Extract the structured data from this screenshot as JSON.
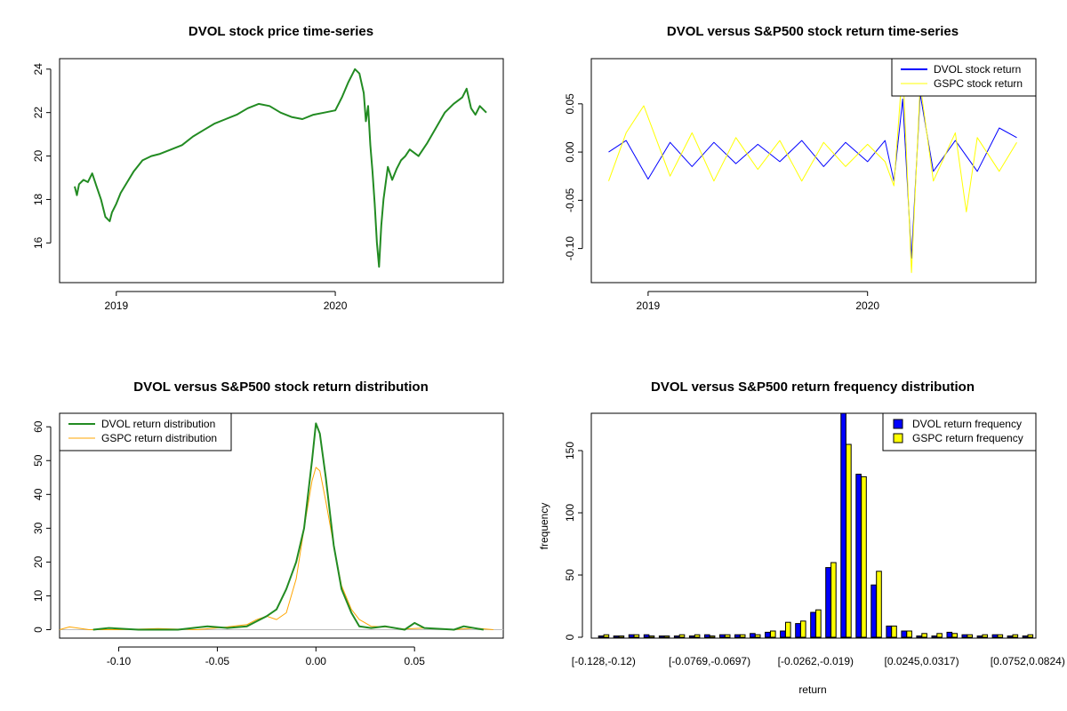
{
  "chart_data": [
    {
      "type": "line",
      "title": "DVOL stock price time-series",
      "xlabel": "",
      "ylabel": "",
      "x_range": [
        2018.81,
        2020.69
      ],
      "ylim": [
        14.5,
        24.4
      ],
      "x_ticks": [
        {
          "value": 2019.0,
          "label": "2019"
        },
        {
          "value": 2020.0,
          "label": "2020"
        }
      ],
      "y_ticks": [
        16,
        18,
        20,
        22,
        24
      ],
      "color": "#228B22",
      "series": [
        {
          "name": "DVOL price",
          "x": [
            2018.81,
            2018.82,
            2018.83,
            2018.85,
            2018.87,
            2018.89,
            2018.91,
            2018.93,
            2018.95,
            2018.97,
            2018.98,
            2019.0,
            2019.02,
            2019.05,
            2019.08,
            2019.12,
            2019.16,
            2019.2,
            2019.25,
            2019.3,
            2019.35,
            2019.4,
            2019.45,
            2019.5,
            2019.55,
            2019.6,
            2019.65,
            2019.7,
            2019.75,
            2019.8,
            2019.85,
            2019.9,
            2019.95,
            2020.0,
            2020.03,
            2020.06,
            2020.09,
            2020.11,
            2020.13,
            2020.14,
            2020.15,
            2020.16,
            2020.17,
            2020.18,
            2020.19,
            2020.2,
            2020.21,
            2020.22,
            2020.24,
            2020.26,
            2020.28,
            2020.3,
            2020.32,
            2020.34,
            2020.38,
            2020.42,
            2020.46,
            2020.5,
            2020.54,
            2020.58,
            2020.6,
            2020.62,
            2020.64,
            2020.66,
            2020.69
          ],
          "values": [
            18.6,
            18.2,
            18.7,
            18.9,
            18.8,
            19.2,
            18.6,
            18.0,
            17.2,
            17.0,
            17.4,
            17.8,
            18.3,
            18.8,
            19.3,
            19.8,
            20.0,
            20.1,
            20.3,
            20.5,
            20.9,
            21.2,
            21.5,
            21.7,
            21.9,
            22.2,
            22.4,
            22.3,
            22.0,
            21.8,
            21.7,
            21.9,
            22.0,
            22.1,
            22.7,
            23.4,
            24.0,
            23.8,
            22.9,
            21.6,
            22.3,
            20.5,
            19.3,
            17.8,
            16.0,
            14.9,
            16.8,
            18.0,
            19.5,
            18.9,
            19.4,
            19.8,
            20.0,
            20.3,
            20.0,
            20.6,
            21.3,
            22.0,
            22.4,
            22.7,
            23.1,
            22.2,
            21.9,
            22.3,
            22.0
          ]
        }
      ]
    },
    {
      "type": "line",
      "title": "DVOL versus S&P500 stock return time-series",
      "xlabel": "",
      "ylabel": "",
      "x_range": [
        2018.81,
        2020.69
      ],
      "ylim": [
        -0.128,
        0.095
      ],
      "x_ticks": [
        {
          "value": 2019.0,
          "label": "2019"
        },
        {
          "value": 2020.0,
          "label": "2020"
        }
      ],
      "y_ticks": [
        {
          "value": -0.1,
          "label": "-0.10"
        },
        {
          "value": -0.05,
          "label": "-0.05"
        },
        {
          "value": 0.0,
          "label": "0.00"
        },
        {
          "value": 0.05,
          "label": "0.05"
        }
      ],
      "legend": {
        "position": "top-right",
        "entries": [
          {
            "label": "DVOL stock return",
            "color": "#0000FF"
          },
          {
            "label": "GSPC stock return",
            "color": "#FFFF00"
          }
        ]
      },
      "series": [
        {
          "name": "DVOL stock return",
          "color": "#0000FF",
          "x": [
            2018.82,
            2018.9,
            2019.0,
            2019.1,
            2019.2,
            2019.3,
            2019.4,
            2019.5,
            2019.6,
            2019.7,
            2019.8,
            2019.9,
            2020.0,
            2020.08,
            2020.12,
            2020.16,
            2020.2,
            2020.24,
            2020.3,
            2020.4,
            2020.5,
            2020.6,
            2020.68
          ],
          "values": [
            0.0,
            0.012,
            -0.028,
            0.01,
            -0.015,
            0.01,
            -0.012,
            0.008,
            -0.01,
            0.012,
            -0.015,
            0.01,
            -0.01,
            0.012,
            -0.03,
            0.055,
            -0.11,
            0.06,
            -0.02,
            0.012,
            -0.02,
            0.025,
            0.015
          ]
        },
        {
          "name": "GSPC stock return",
          "color": "#FFFF00",
          "x": [
            2018.82,
            2018.9,
            2018.98,
            2019.1,
            2019.2,
            2019.3,
            2019.4,
            2019.5,
            2019.6,
            2019.7,
            2019.8,
            2019.9,
            2020.0,
            2020.08,
            2020.12,
            2020.16,
            2020.2,
            2020.24,
            2020.3,
            2020.4,
            2020.45,
            2020.5,
            2020.6,
            2020.68
          ],
          "values": [
            -0.03,
            0.02,
            0.048,
            -0.025,
            0.02,
            -0.03,
            0.015,
            -0.018,
            0.012,
            -0.03,
            0.01,
            -0.015,
            0.008,
            -0.01,
            -0.035,
            0.09,
            -0.125,
            0.07,
            -0.03,
            0.02,
            -0.062,
            0.015,
            -0.02,
            0.01
          ]
        }
      ]
    },
    {
      "type": "line",
      "title": "DVOL versus S&P500 stock return distribution",
      "xlabel": "",
      "ylabel": "",
      "xlim": [
        -0.13,
        0.095
      ],
      "ylim": [
        -2.5,
        64
      ],
      "x_ticks": [
        {
          "value": -0.1,
          "label": "-0.10"
        },
        {
          "value": -0.05,
          "label": "-0.05"
        },
        {
          "value": 0.0,
          "label": "0.00"
        },
        {
          "value": 0.05,
          "label": "0.05"
        }
      ],
      "y_ticks": [
        0,
        10,
        20,
        30,
        40,
        50,
        60
      ],
      "legend": {
        "position": "top-left",
        "entries": [
          {
            "label": "DVOL return distribution",
            "color": "#228B22"
          },
          {
            "label": "GSPC return distribution",
            "color": "#FFA500"
          }
        ]
      },
      "series": [
        {
          "name": "DVOL return distribution",
          "color": "#228B22",
          "x": [
            -0.113,
            -0.105,
            -0.09,
            -0.07,
            -0.055,
            -0.045,
            -0.035,
            -0.03,
            -0.025,
            -0.02,
            -0.015,
            -0.01,
            -0.006,
            -0.002,
            0.0,
            0.002,
            0.005,
            0.009,
            0.013,
            0.018,
            0.022,
            0.028,
            0.035,
            0.045,
            0.05,
            0.055,
            0.07,
            0.075,
            0.085
          ],
          "values": [
            0,
            0.5,
            0,
            0,
            1.0,
            0.5,
            1.0,
            2.5,
            4,
            6,
            12,
            20,
            30,
            50,
            61,
            58,
            45,
            25,
            12,
            5,
            1.0,
            0.5,
            1.0,
            0,
            2.0,
            0.5,
            0,
            1.0,
            0
          ]
        },
        {
          "name": "GSPC return distribution",
          "color": "#FFA500",
          "x": [
            -0.13,
            -0.125,
            -0.115,
            -0.1,
            -0.08,
            -0.06,
            -0.045,
            -0.035,
            -0.03,
            -0.025,
            -0.02,
            -0.015,
            -0.01,
            -0.006,
            -0.002,
            0.0,
            0.002,
            0.005,
            0.009,
            0.013,
            0.018,
            0.022,
            0.028,
            0.035,
            0.045,
            0.055,
            0.07,
            0.08,
            0.09
          ],
          "values": [
            0,
            0.8,
            0,
            0,
            0.3,
            0,
            0.8,
            1.5,
            3,
            4,
            3,
            5,
            15,
            30,
            44,
            48,
            47,
            38,
            25,
            13,
            6,
            3,
            1.0,
            0.8,
            0.2,
            0.5,
            0,
            0.5,
            0
          ]
        }
      ]
    },
    {
      "type": "bar",
      "title": "DVOL versus S&P500 return frequency distribution",
      "xlabel": "return",
      "ylabel": "frequency",
      "ylim": [
        0,
        180
      ],
      "y_ticks": [
        0,
        50,
        100,
        150
      ],
      "tick_labels": [
        {
          "index": 0,
          "label": "[-0.128,-0.12)"
        },
        {
          "index": 7,
          "label": "[-0.0769,-0.0697)"
        },
        {
          "index": 14,
          "label": "[-0.0262,-0.019)"
        },
        {
          "index": 21,
          "label": "[0.0245,0.0317)"
        },
        {
          "index": 28,
          "label": "[0.0752,0.0824)"
        }
      ],
      "legend": {
        "position": "top-right",
        "entries": [
          {
            "label": "DVOL return frequency",
            "color": "#0000FF"
          },
          {
            "label": "GSPC return frequency",
            "color": "#FFFF00"
          }
        ]
      },
      "n_bins": 29,
      "series": [
        {
          "name": "DVOL return frequency",
          "color": "#0000FF",
          "values": [
            1,
            1,
            2,
            2,
            1,
            1,
            1,
            2,
            2,
            2,
            3,
            4,
            5,
            11,
            20,
            56,
            185,
            131,
            42,
            9,
            5,
            1,
            1,
            4,
            2,
            1,
            2,
            1,
            1
          ]
        },
        {
          "name": "GSPC return frequency",
          "color": "#FFFF00",
          "values": [
            2,
            1,
            2,
            1,
            1,
            2,
            2,
            1,
            2,
            2,
            2,
            5,
            12,
            13,
            22,
            60,
            155,
            129,
            53,
            9,
            5,
            3,
            3,
            3,
            2,
            2,
            2,
            2,
            2
          ]
        }
      ]
    }
  ]
}
